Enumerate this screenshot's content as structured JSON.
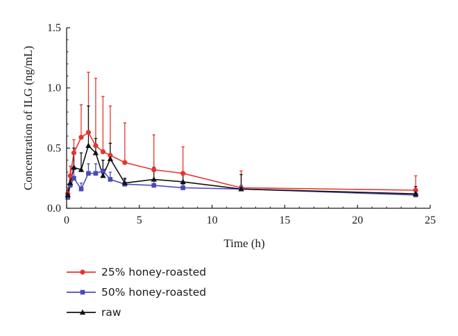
{
  "chart_data": {
    "type": "line",
    "xlabel": "Time (h)",
    "ylabel": "Concentration of ILG (ng/mL)",
    "xlim": [
      0,
      25
    ],
    "ylim": [
      0,
      1.5
    ],
    "x_ticks": [
      "0",
      "5",
      "10",
      "15",
      "20",
      "25"
    ],
    "y_ticks": [
      "0.0",
      "0.5",
      "1.0",
      "1.5"
    ],
    "grid": false,
    "legend_position": "bottom-left",
    "series": [
      {
        "name": "25% honey-roasted",
        "color": "#e8322e",
        "marker": "circle",
        "x": [
          0.083,
          0.25,
          0.5,
          1,
          1.5,
          2,
          2.5,
          3,
          4,
          6,
          8,
          12,
          24
        ],
        "y": [
          0.12,
          0.27,
          0.46,
          0.59,
          0.63,
          0.52,
          0.47,
          0.44,
          0.38,
          0.32,
          0.29,
          0.17,
          0.15
        ],
        "error": [
          0.05,
          0.08,
          0.11,
          0.27,
          0.5,
          0.56,
          0.46,
          0.41,
          0.33,
          0.29,
          0.22,
          0.14,
          0.12
        ]
      },
      {
        "name": "50% honey-roasted",
        "color": "#4a4ab8",
        "marker": "square",
        "x": [
          0.083,
          0.25,
          0.5,
          1,
          1.5,
          2,
          2.5,
          3,
          4,
          6,
          8,
          12,
          24
        ],
        "y": [
          0.09,
          0.19,
          0.25,
          0.16,
          0.29,
          0.29,
          0.31,
          0.24,
          0.2,
          0.19,
          0.17,
          0.16,
          0.11
        ],
        "error": [
          0.03,
          0.04,
          0.07,
          0.05,
          0.08,
          0.08,
          0.09,
          0.06,
          0.04,
          0.04,
          0.03,
          0.03,
          0.03
        ]
      },
      {
        "name": "raw",
        "color": "#111111",
        "marker": "triangle",
        "x": [
          0.083,
          0.25,
          0.5,
          1,
          1.5,
          2,
          2.5,
          3,
          4,
          6,
          8,
          12,
          24
        ],
        "y": [
          0.11,
          0.21,
          0.34,
          0.32,
          0.52,
          0.46,
          0.27,
          0.41,
          0.21,
          0.24,
          0.22,
          0.16,
          0.12
        ],
        "error": [
          0.04,
          0.05,
          0.16,
          0.14,
          0.33,
          0.12,
          0.13,
          0.13,
          0.04,
          0.1,
          0.07,
          0.12,
          0.06
        ]
      }
    ]
  }
}
